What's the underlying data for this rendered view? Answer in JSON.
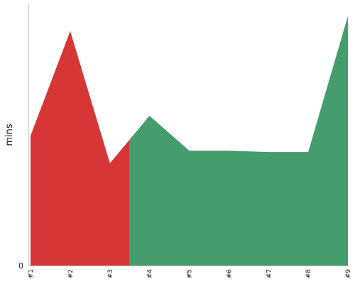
{
  "chart_data": {
    "type": "area",
    "ylabel": "mins",
    "y_tick_labels": [
      "0"
    ],
    "ylim": [
      0,
      105
    ],
    "grid": false,
    "categories": [
      "#1",
      "#2",
      "#3",
      "#4",
      "#5",
      "#6",
      "#7",
      "#8",
      "#9"
    ],
    "values": [
      52,
      94,
      41,
      60,
      46,
      46,
      45.5,
      45.5,
      100
    ],
    "color_split_x": 2.5,
    "colors": {
      "before_split": "#d63636",
      "after_split": "#459c6d",
      "axis": "#bbbbbb",
      "text": "#222222"
    }
  }
}
